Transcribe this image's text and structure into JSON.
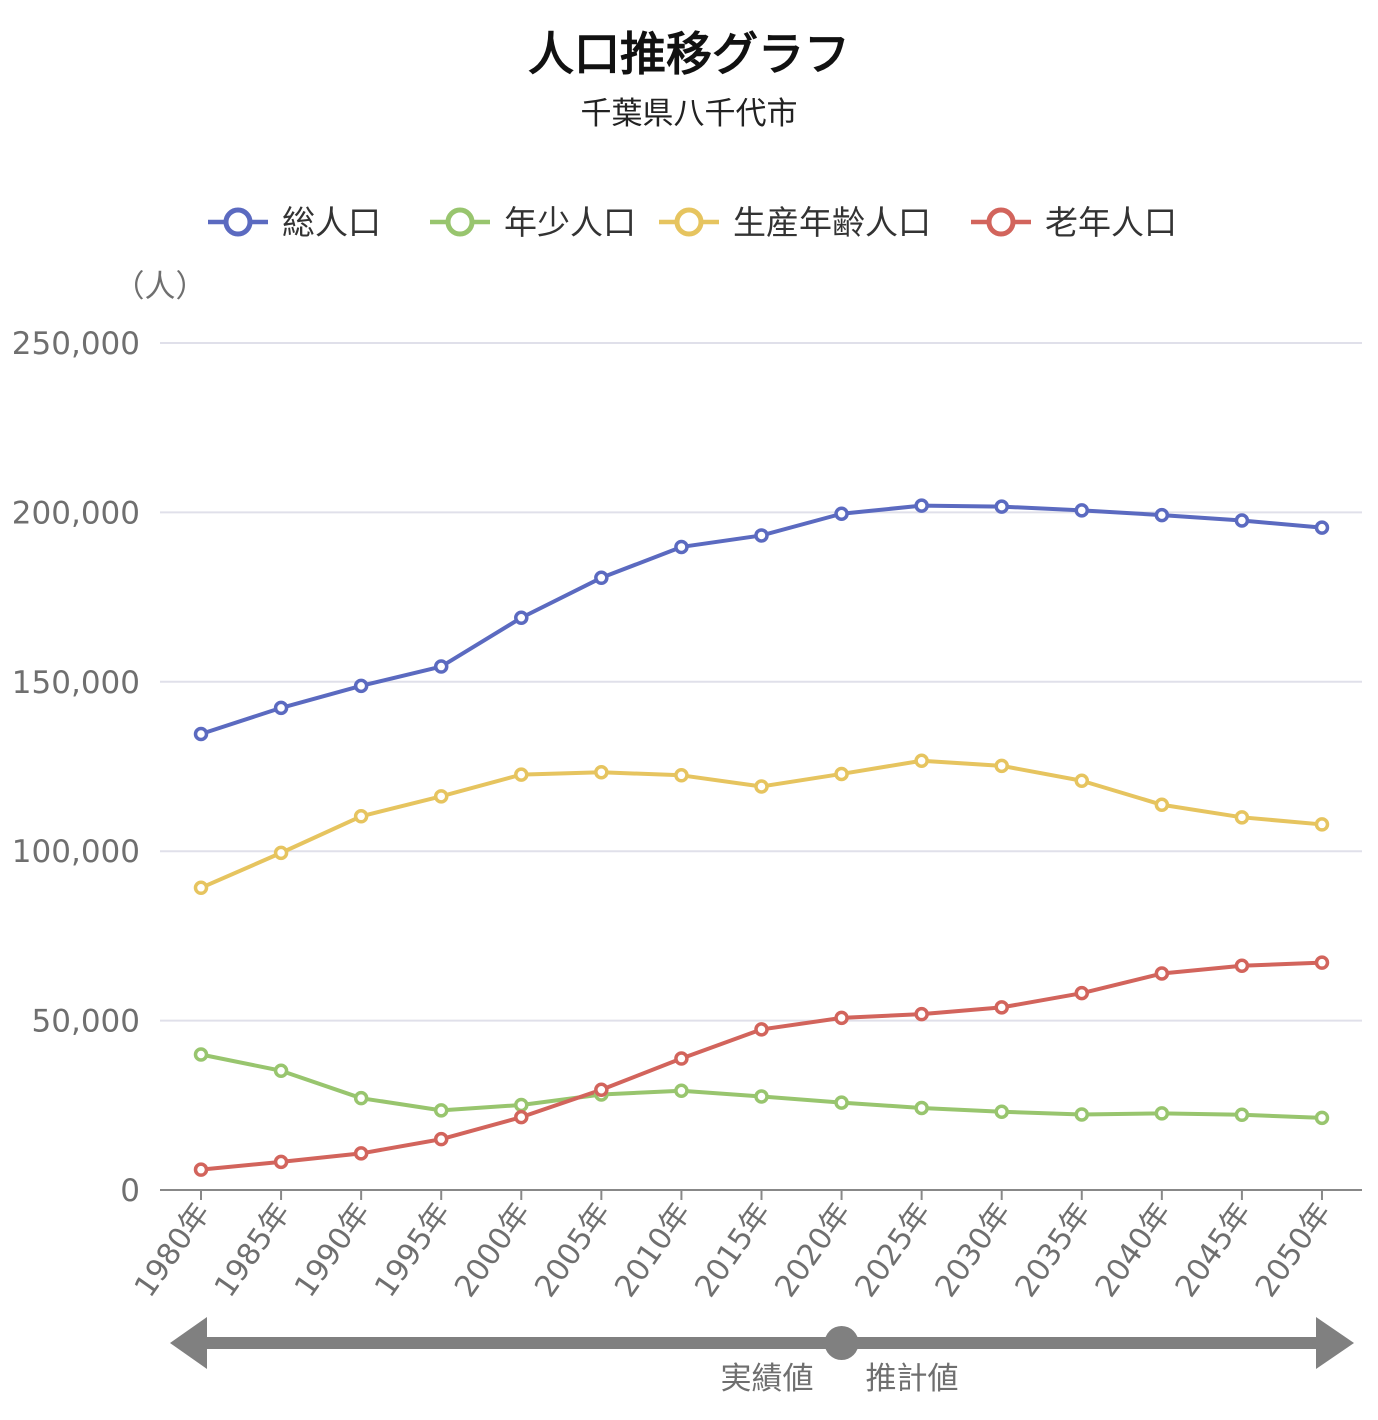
{
  "title": "人口推移グラフ",
  "subtitle": "千葉県八千代市",
  "chart_data": {
    "type": "line",
    "title": "人口推移グラフ",
    "subtitle": "千葉県八千代市",
    "ylabel": "（人）",
    "xlabel": "",
    "ylim": [
      0,
      250000
    ],
    "yticks": [
      "0",
      "50,000",
      "100,000",
      "150,000",
      "200,000",
      "250,000"
    ],
    "ytick_values": [
      0,
      50000,
      100000,
      150000,
      200000,
      250000
    ],
    "grid": true,
    "legend_position": "top",
    "categories": [
      "1980年",
      "1985年",
      "1990年",
      "1995年",
      "2000年",
      "2005年",
      "2010年",
      "2015年",
      "2020年",
      "2025年",
      "2030年",
      "2035年",
      "2040年",
      "2045年",
      "2050年"
    ],
    "series": [
      {
        "name": "総人口",
        "color": "#5b6ac0",
        "values": [
          134600,
          142300,
          148800,
          154500,
          168900,
          180700,
          189800,
          193200,
          199600,
          202000,
          201700,
          200600,
          199200,
          197600,
          195500
        ]
      },
      {
        "name": "年少人口",
        "color": "#98c56e",
        "values": [
          40000,
          35200,
          27100,
          23500,
          25100,
          28200,
          29300,
          27600,
          25800,
          24200,
          23100,
          22300,
          22600,
          22200,
          21300
        ]
      },
      {
        "name": "生産年齢人口",
        "color": "#e6c45f",
        "values": [
          89200,
          99500,
          110300,
          116200,
          122600,
          123300,
          122400,
          119100,
          122800,
          126700,
          125200,
          120800,
          113700,
          110000,
          107900
        ]
      },
      {
        "name": "老年人口",
        "color": "#d2645c",
        "values": [
          6000,
          8300,
          10800,
          15000,
          21500,
          29600,
          38800,
          47400,
          50800,
          51900,
          53900,
          58100,
          63900,
          66200,
          67100
        ]
      }
    ],
    "phases": {
      "actual_label": "実績値",
      "estimate_label": "推計値",
      "divider_category": "2020年",
      "arrow_color": "#808080"
    }
  }
}
